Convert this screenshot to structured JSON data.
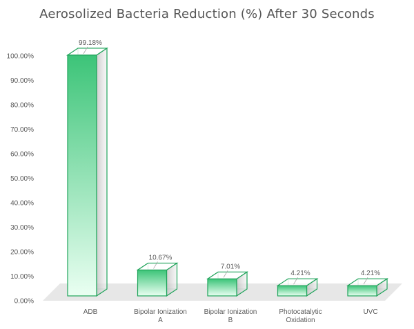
{
  "chart_data": {
    "type": "bar",
    "title": "Aerosolized Bacteria Reduction (%) After 30 Seconds",
    "categories": [
      [
        "ADB"
      ],
      [
        "Bipolar Ionization",
        "A"
      ],
      [
        "Bipolar Ionization",
        "B"
      ],
      [
        "Photocatalytic",
        "Oxidation"
      ],
      [
        "UVC"
      ]
    ],
    "values": [
      99.18,
      10.67,
      7.01,
      4.21,
      4.21
    ],
    "data_labels": [
      "99.18%",
      "10.67%",
      "7.01%",
      "4.21%",
      "4.21%"
    ],
    "y_ticks": [
      "0.00%",
      "10.00%",
      "20.00%",
      "30.00%",
      "40.00%",
      "50.00%",
      "60.00%",
      "70.00%",
      "80.00%",
      "90.00%",
      "100.00%"
    ],
    "ylim": [
      0,
      100
    ],
    "grid": false,
    "style": "3d-column",
    "colors": {
      "bar_stroke": "#1fa35a",
      "bar_fill_top": "#3cc478",
      "bar_fill_bottom": "#eafff2",
      "side_fill": "#d9d9d9",
      "floor": "#e7e7e7"
    }
  }
}
